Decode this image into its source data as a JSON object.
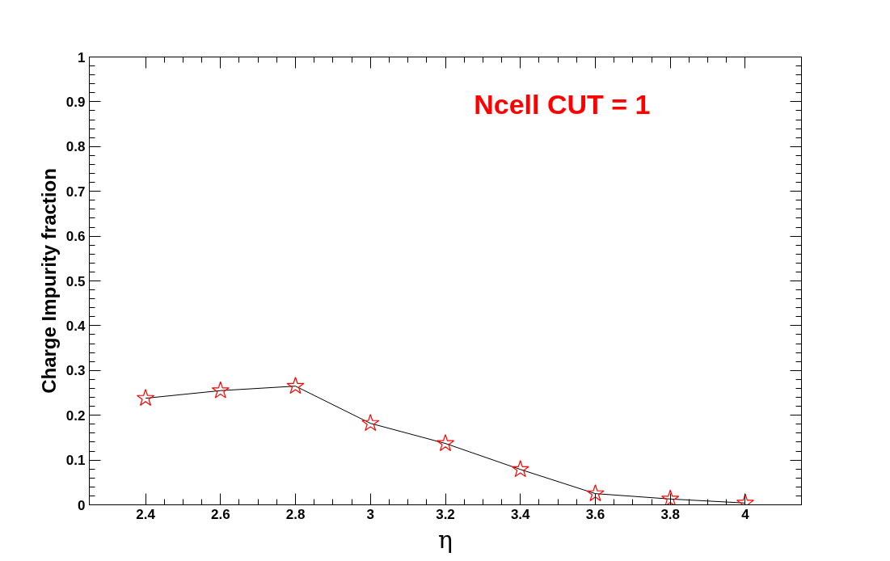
{
  "chart_data": {
    "type": "line",
    "xlabel": "η",
    "ylabel": "Charge Impurity fraction",
    "annotations": [
      "Ncell CUT = 1"
    ],
    "x": [
      2.4,
      2.6,
      2.8,
      3.0,
      3.2,
      3.4,
      3.6,
      3.8,
      4.0
    ],
    "series": [
      {
        "color": "#ff0000",
        "values": [
          0.238,
          0.255,
          0.265,
          0.182,
          0.137,
          0.079,
          0.025,
          0.013,
          0.004
        ]
      }
    ],
    "xlim": [
      2.25,
      4.15
    ],
    "ylim": [
      0,
      1
    ],
    "xticks": [
      2.4,
      2.6,
      2.8,
      3,
      3.2,
      3.4,
      3.6,
      3.8,
      4
    ],
    "yticks": [
      0,
      0.1,
      0.2,
      0.3,
      0.4,
      0.5,
      0.6,
      0.7,
      0.8,
      0.9,
      1
    ],
    "grid": false,
    "marker": "star",
    "line_style": "solid"
  }
}
